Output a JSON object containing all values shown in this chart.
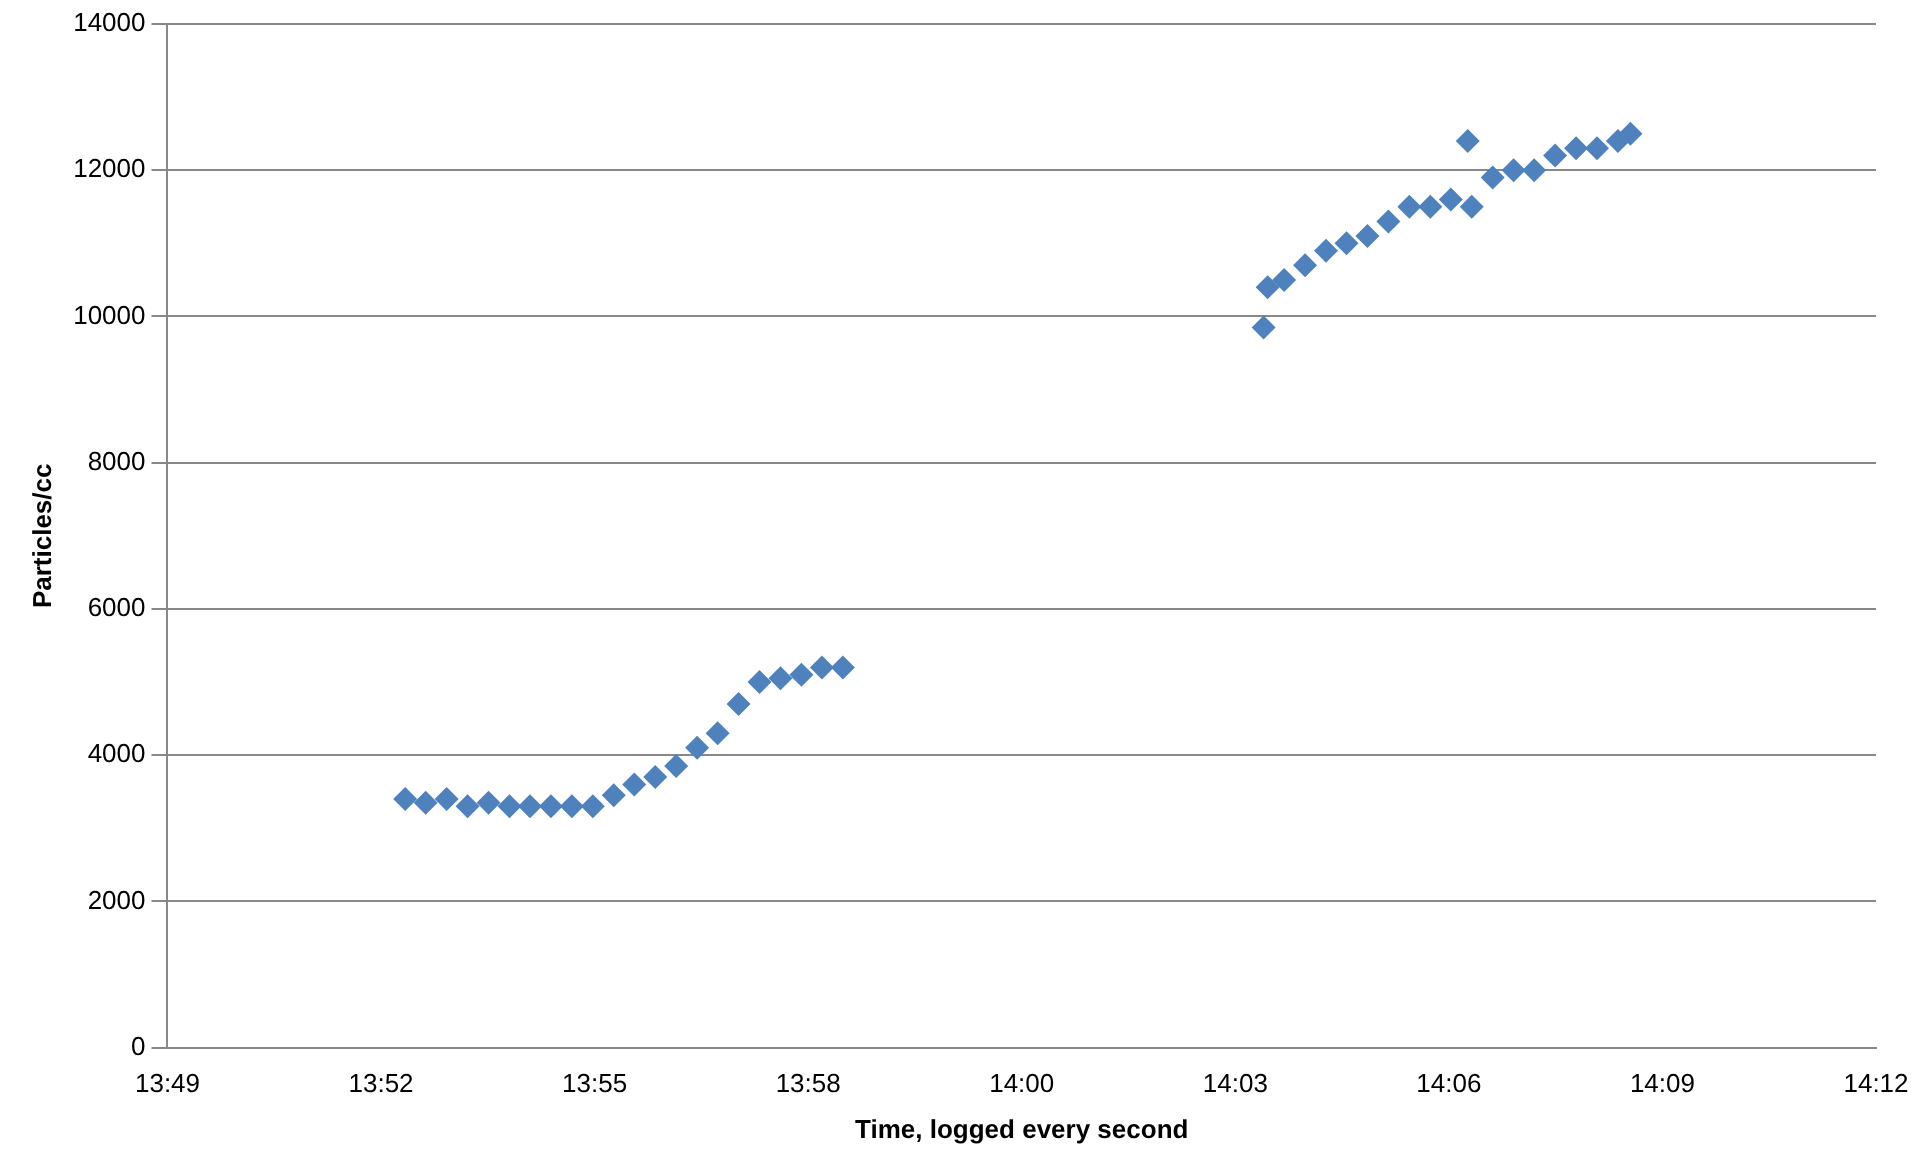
{
  "chart_data": {
    "type": "scatter",
    "xlabel": "Time, logged every second",
    "ylabel": "Particles/cc",
    "series": [
      {
        "color": "#4f81bd",
        "x": [
          13.87,
          13.8746,
          13.8793,
          13.884,
          13.8887,
          13.8934,
          13.898,
          13.9027,
          13.9074,
          13.9121,
          13.9168,
          13.9214,
          13.9261,
          13.9308,
          13.9355,
          13.9401,
          13.9448,
          13.9495,
          13.9542,
          13.9589,
          13.9635,
          13.9682,
          14.0626,
          14.0635,
          14.0672,
          14.0719,
          14.0766,
          14.0812,
          14.0859,
          14.0906,
          14.0953,
          14.1,
          14.1046,
          14.1084,
          14.1093,
          14.114,
          14.1187,
          14.1233,
          14.128,
          14.1327,
          14.1374,
          14.1421,
          14.1449
        ],
        "values": [
          3400,
          3350,
          3400,
          3300,
          3350,
          3300,
          3300,
          3300,
          3300,
          3300,
          3450,
          3600,
          3700,
          3850,
          4100,
          4300,
          4700,
          5000,
          5050,
          5100,
          5200,
          5200,
          9850,
          10400,
          10500,
          10700,
          10900,
          11000,
          11100,
          11300,
          11500,
          11500,
          11600,
          12400,
          11500,
          11900,
          12000,
          12000,
          12200,
          12300,
          12300,
          12400,
          12500
        ]
      }
    ],
    "xlim": [
      13.81667,
      14.2
    ],
    "xticks": [
      {
        "value": 13.81667,
        "label": "13:49"
      },
      {
        "value": 13.86458,
        "label": "13:52"
      },
      {
        "value": 13.9125,
        "label": "13:55"
      },
      {
        "value": 13.96042,
        "label": "13:58"
      },
      {
        "value": 14.00833,
        "label": "14:00"
      },
      {
        "value": 14.05625,
        "label": "14:03"
      },
      {
        "value": 14.10417,
        "label": "14:06"
      },
      {
        "value": 14.15208,
        "label": "14:09"
      },
      {
        "value": 14.2,
        "label": "14:12"
      }
    ],
    "ylim": [
      0,
      14000
    ],
    "yticks": [
      0,
      2000,
      4000,
      6000,
      8000,
      10000,
      12000,
      14000
    ],
    "grid": "y",
    "legend": false,
    "marker": "diamond"
  }
}
